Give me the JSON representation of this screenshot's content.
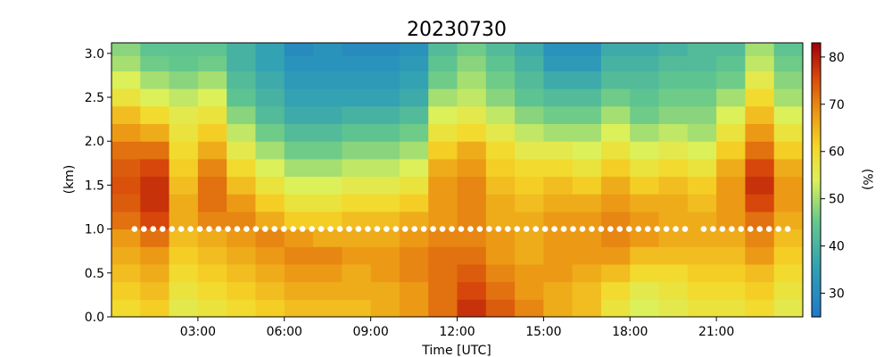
{
  "chart_data": {
    "type": "heatmap",
    "title": "20230730",
    "xlabel": "Time [UTC]",
    "ylabel": "(km)",
    "colorbar_label": "(%)",
    "colormap": "jet-like (blue low, green, yellow, red high)",
    "grid": false,
    "x_range_hours": [
      0.0,
      24.0
    ],
    "y_range_km": [
      0.0,
      3.12
    ],
    "color_range": [
      25,
      83
    ],
    "x_ticks": [
      {
        "value": 3,
        "label": "03:00"
      },
      {
        "value": 6,
        "label": "06:00"
      },
      {
        "value": 9,
        "label": "09:00"
      },
      {
        "value": 12,
        "label": "12:00"
      },
      {
        "value": 15,
        "label": "15:00"
      },
      {
        "value": 18,
        "label": "18:00"
      },
      {
        "value": 21,
        "label": "21:00"
      }
    ],
    "y_ticks": [
      {
        "value": 0.0,
        "label": "0.0"
      },
      {
        "value": 0.5,
        "label": "0.5"
      },
      {
        "value": 1.0,
        "label": "1.0"
      },
      {
        "value": 1.5,
        "label": "1.5"
      },
      {
        "value": 2.0,
        "label": "2.0"
      },
      {
        "value": 2.5,
        "label": "2.5"
      },
      {
        "value": 3.0,
        "label": "3.0"
      }
    ],
    "colorbar_ticks": [
      {
        "value": 30,
        "label": "30"
      },
      {
        "value": 40,
        "label": "40"
      },
      {
        "value": 50,
        "label": "50"
      },
      {
        "value": 60,
        "label": "60"
      },
      {
        "value": 70,
        "label": "70"
      },
      {
        "value": 80,
        "label": "80"
      }
    ],
    "height_levels_km": [
      0.1,
      0.3,
      0.5,
      0.7,
      0.9,
      1.1,
      1.3,
      1.5,
      1.7,
      1.9,
      2.1,
      2.3,
      2.5,
      2.7,
      2.9,
      3.05
    ],
    "time_bins_hours": [
      0.5,
      1.5,
      2.5,
      3.5,
      4.5,
      5.5,
      6.5,
      7.5,
      8.5,
      9.5,
      10.5,
      11.5,
      12.5,
      13.5,
      14.5,
      15.5,
      16.5,
      17.5,
      18.5,
      19.5,
      20.5,
      21.5,
      22.5,
      23.5
    ],
    "values_percent_by_time": [
      [
        60,
        62,
        64,
        66,
        68,
        72,
        74,
        75,
        74,
        72,
        68,
        64,
        58,
        54,
        50,
        48
      ],
      [
        62,
        64,
        66,
        68,
        72,
        76,
        78,
        78,
        76,
        72,
        66,
        60,
        54,
        50,
        46,
        44
      ],
      [
        56,
        58,
        60,
        62,
        64,
        66,
        66,
        64,
        62,
        60,
        58,
        56,
        52,
        48,
        45,
        44
      ],
      [
        58,
        60,
        62,
        64,
        66,
        70,
        72,
        72,
        70,
        66,
        62,
        58,
        54,
        50,
        46,
        44
      ],
      [
        60,
        62,
        64,
        66,
        68,
        70,
        68,
        64,
        60,
        56,
        52,
        48,
        44,
        42,
        40,
        40
      ],
      [
        62,
        64,
        66,
        68,
        70,
        66,
        62,
        58,
        54,
        50,
        46,
        42,
        40,
        38,
        36,
        36
      ],
      [
        64,
        66,
        68,
        70,
        68,
        62,
        58,
        54,
        50,
        46,
        42,
        38,
        36,
        34,
        32,
        30
      ],
      [
        64,
        66,
        68,
        70,
        66,
        62,
        58,
        54,
        50,
        46,
        42,
        38,
        36,
        34,
        32,
        32
      ],
      [
        64,
        66,
        66,
        68,
        66,
        64,
        60,
        56,
        52,
        48,
        44,
        40,
        36,
        34,
        32,
        30
      ],
      [
        66,
        66,
        68,
        68,
        66,
        64,
        60,
        56,
        52,
        48,
        44,
        40,
        36,
        34,
        32,
        30
      ],
      [
        68,
        68,
        70,
        70,
        68,
        66,
        62,
        58,
        54,
        50,
        46,
        42,
        38,
        36,
        34,
        32
      ],
      [
        72,
        72,
        72,
        72,
        70,
        68,
        68,
        68,
        66,
        62,
        58,
        54,
        50,
        46,
        44,
        42
      ],
      [
        78,
        76,
        74,
        72,
        70,
        70,
        70,
        70,
        68,
        66,
        60,
        56,
        52,
        50,
        48,
        46
      ],
      [
        74,
        72,
        70,
        68,
        68,
        66,
        66,
        64,
        62,
        60,
        56,
        52,
        48,
        46,
        44,
        42
      ],
      [
        70,
        68,
        68,
        66,
        66,
        66,
        64,
        62,
        60,
        56,
        52,
        48,
        44,
        42,
        40,
        38
      ],
      [
        66,
        66,
        68,
        68,
        68,
        68,
        66,
        64,
        60,
        56,
        50,
        46,
        42,
        38,
        34,
        32
      ],
      [
        64,
        64,
        66,
        68,
        68,
        68,
        66,
        62,
        58,
        54,
        50,
        46,
        42,
        38,
        34,
        32
      ],
      [
        58,
        60,
        64,
        68,
        70,
        70,
        68,
        66,
        62,
        58,
        54,
        50,
        46,
        42,
        40,
        38
      ],
      [
        54,
        56,
        60,
        64,
        68,
        68,
        66,
        62,
        58,
        54,
        50,
        46,
        44,
        42,
        40,
        38
      ],
      [
        56,
        58,
        60,
        64,
        66,
        66,
        66,
        64,
        60,
        56,
        52,
        48,
        46,
        44,
        42,
        40
      ],
      [
        58,
        60,
        62,
        64,
        66,
        66,
        64,
        62,
        58,
        54,
        50,
        48,
        46,
        44,
        42,
        42
      ],
      [
        58,
        60,
        62,
        64,
        66,
        68,
        68,
        68,
        66,
        62,
        58,
        54,
        50,
        46,
        44,
        42
      ],
      [
        60,
        62,
        64,
        68,
        70,
        72,
        76,
        78,
        76,
        72,
        68,
        64,
        60,
        56,
        52,
        50
      ],
      [
        56,
        58,
        60,
        62,
        64,
        66,
        68,
        68,
        66,
        62,
        58,
        54,
        50,
        48,
        46,
        44
      ]
    ],
    "marker_series": {
      "name": "",
      "height_km": 1.0,
      "marker": "white dots",
      "gap_hours": [
        [
          20.2,
          20.5
        ]
      ]
    }
  }
}
